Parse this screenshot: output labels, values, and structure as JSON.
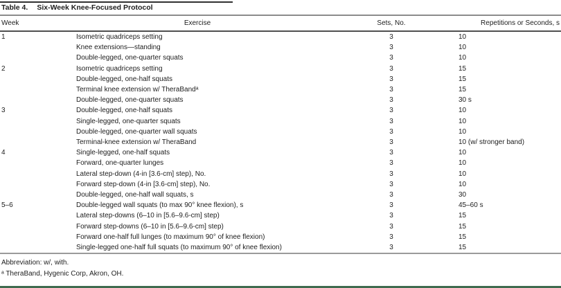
{
  "title": {
    "label": "Table 4.",
    "caption": "Six-Week Knee-Focused Protocol"
  },
  "columns": [
    "Week",
    "Exercise",
    "Sets, No.",
    "Repetitions or Seconds, s"
  ],
  "rows": [
    {
      "week": "1",
      "exercise": "Isometric quadriceps setting",
      "sets": "3",
      "reps": "10"
    },
    {
      "week": "",
      "exercise": "Knee extensions—standing",
      "sets": "3",
      "reps": "10"
    },
    {
      "week": "",
      "exercise": "Double-legged, one-quarter squats",
      "sets": "3",
      "reps": "10"
    },
    {
      "week": "2",
      "exercise": "Isometric quadriceps setting",
      "sets": "3",
      "reps": "15"
    },
    {
      "week": "",
      "exercise": "Double-legged, one-half squats",
      "sets": "3",
      "reps": "15"
    },
    {
      "week": "",
      "exercise": "Terminal knee extension w/ TheraBandᵃ",
      "sets": "3",
      "reps": "15"
    },
    {
      "week": "",
      "exercise": "Double-legged, one-quarter squats",
      "sets": "3",
      "reps": "30 s"
    },
    {
      "week": "3",
      "exercise": "Double-legged, one-half squats",
      "sets": "3",
      "reps": "10"
    },
    {
      "week": "",
      "exercise": "Single-legged, one-quarter squats",
      "sets": "3",
      "reps": "10"
    },
    {
      "week": "",
      "exercise": "Double-legged, one-quarter wall squats",
      "sets": "3",
      "reps": "10"
    },
    {
      "week": "",
      "exercise": "Terminal-knee extension w/ TheraBand",
      "sets": "3",
      "reps": "10 (w/ stronger band)"
    },
    {
      "week": "4",
      "exercise": "Single-legged, one-half squats",
      "sets": "3",
      "reps": "10"
    },
    {
      "week": "",
      "exercise": "Forward, one-quarter lunges",
      "sets": "3",
      "reps": "10"
    },
    {
      "week": "",
      "exercise": "Lateral step-down (4-in [3.6-cm] step), No.",
      "sets": "3",
      "reps": "10"
    },
    {
      "week": "",
      "exercise": "Forward step-down (4-in [3.6-cm] step), No.",
      "sets": "3",
      "reps": "10"
    },
    {
      "week": "",
      "exercise": "Double-legged, one-half wall squats, s",
      "sets": "3",
      "reps": "30"
    },
    {
      "week": "5–6",
      "exercise": "Double-legged wall squats (to max 90° knee flexion), s",
      "sets": "3",
      "reps": "45–60 s"
    },
    {
      "week": "",
      "exercise": "Lateral step-downs (6–10 in [5.6–9.6-cm] step)",
      "sets": "3",
      "reps": "15"
    },
    {
      "week": "",
      "exercise": "Forward step-downs (6–10 in [5.6–9.6-cm] step)",
      "sets": "3",
      "reps": "15"
    },
    {
      "week": "",
      "exercise": "Forward one-half full lunges (to maximum 90° of knee flexion)",
      "sets": "3",
      "reps": "15"
    },
    {
      "week": "",
      "exercise": "Single-legged one-half full squats (to maximum 90° of knee flexion)",
      "sets": "3",
      "reps": "15"
    }
  ],
  "footnotes": [
    "Abbreviation: w/, with.",
    "ᵃ TheraBand, Hygenic Corp, Akron, OH."
  ],
  "colors": {
    "text": "#1d1d1d",
    "top_rule": "#2f2f2f",
    "title_rule": "#8b8b8b",
    "header_rule": "#4e4e4e",
    "body_rule": "#9a9a9a",
    "bottom_bar": "#3e6b4e"
  }
}
